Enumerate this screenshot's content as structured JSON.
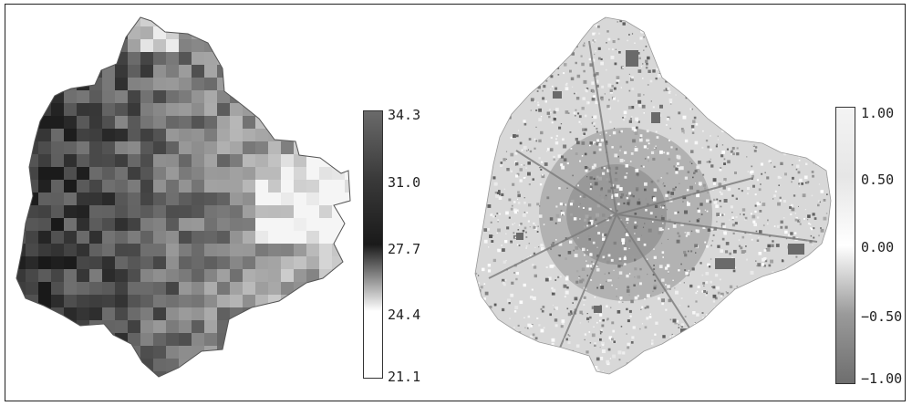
{
  "panels": [
    {
      "kind": "temperature",
      "colorbar": {
        "ticks": [
          "34.3",
          "31.0",
          "27.7",
          "24.4",
          "21.1"
        ],
        "gradient": [
          "#6a6a6a",
          "#3a3a3a",
          "#1a1a1a",
          "#ffffff",
          "#ffffff"
        ]
      }
    },
    {
      "kind": "index",
      "colorbar": {
        "ticks": [
          "1.00",
          "0.50",
          "0.00",
          "−0.50",
          "−1.00"
        ],
        "gradient": [
          "#f4f4f4",
          "#e6e6e6",
          "#ffffff",
          "#9a9a9a",
          "#6e6e6e"
        ]
      }
    }
  ]
}
